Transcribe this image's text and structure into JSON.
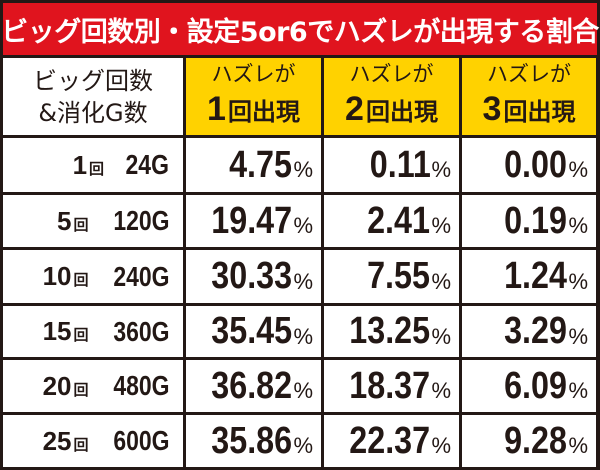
{
  "title": "ビッグ回数別・設定5or6でハズレが出現する割合",
  "header": {
    "row_label_line1": "ビッグ回数",
    "row_label_line2": "&消化G数",
    "columns": [
      {
        "line1": "ハズレが",
        "number": "1",
        "word": "回出現"
      },
      {
        "line1": "ハズレが",
        "number": "2",
        "word": "回出現"
      },
      {
        "line1": "ハズレが",
        "number": "3",
        "word": "回出現"
      }
    ]
  },
  "rows": [
    {
      "count": "1",
      "unit": "回",
      "games": "24G",
      "values": [
        "4.75",
        "0.11",
        "0.00"
      ]
    },
    {
      "count": "5",
      "unit": "回",
      "games": "120G",
      "values": [
        "19.47",
        "2.41",
        "0.19"
      ]
    },
    {
      "count": "10",
      "unit": "回",
      "games": "240G",
      "values": [
        "30.33",
        "7.55",
        "1.24"
      ]
    },
    {
      "count": "15",
      "unit": "回",
      "games": "360G",
      "values": [
        "35.45",
        "13.25",
        "3.29"
      ]
    },
    {
      "count": "20",
      "unit": "回",
      "games": "480G",
      "values": [
        "36.82",
        "18.37",
        "6.09"
      ]
    },
    {
      "count": "25",
      "unit": "回",
      "games": "600G",
      "values": [
        "35.86",
        "22.37",
        "9.28"
      ]
    }
  ],
  "percent_sign": "%",
  "colors": {
    "title_bg": "#E0141E",
    "header_bg": "#FFD200",
    "border": "#231815",
    "cell_bg": "#FFFFFF"
  },
  "chart_data": {
    "type": "table",
    "title": "ビッグ回数別・設定5or6でハズレが出現する割合",
    "columns": [
      "ビッグ回数&消化G数",
      "ハズレが1回出現",
      "ハズレが2回出現",
      "ハズレが3回出現"
    ],
    "categories": [
      "1回 24G",
      "5回 120G",
      "10回 240G",
      "15回 360G",
      "20回 480G",
      "25回 600G"
    ],
    "series": [
      {
        "name": "ハズレが1回出現",
        "values": [
          4.75,
          19.47,
          30.33,
          35.45,
          36.82,
          35.86
        ]
      },
      {
        "name": "ハズレが2回出現",
        "values": [
          0.11,
          2.41,
          7.55,
          13.25,
          18.37,
          22.37
        ]
      },
      {
        "name": "ハズレが3回出現",
        "values": [
          0.0,
          0.19,
          1.24,
          3.29,
          6.09,
          9.28
        ]
      }
    ],
    "unit": "%"
  }
}
